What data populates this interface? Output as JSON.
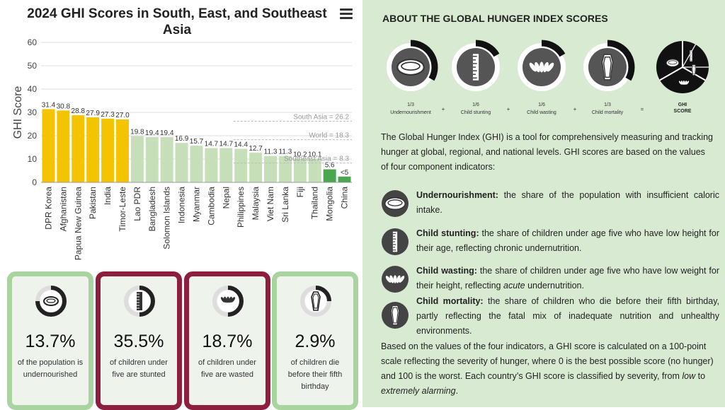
{
  "chart_panel": {
    "title": "2024 GHI Scores in South, East, and Southeast Asia"
  },
  "chart_data": {
    "type": "bar",
    "title": "2024 GHI Scores in South, East, and Southeast Asia",
    "ylabel": "GHI Score",
    "ylim": [
      0,
      60
    ],
    "yticks": [
      0,
      10,
      20,
      30,
      40,
      50,
      60
    ],
    "categories": [
      "DPR Korea",
      "Afghanistan",
      "Papua New Guinea",
      "Pakistan",
      "India",
      "Timor-Leste",
      "Lao PDR",
      "Bangladesh",
      "Solomon Islands",
      "Indonesia",
      "Myanmar",
      "Cambodia",
      "Nepal",
      "Philippines",
      "Malaysia",
      "Viet Nam",
      "Sri Lanka",
      "Fiji",
      "Thailand",
      "Mongolia",
      "China"
    ],
    "values": [
      31.4,
      30.8,
      28.8,
      27.9,
      27.3,
      27.0,
      19.8,
      19.4,
      19.4,
      16.9,
      15.7,
      14.7,
      14.7,
      14.4,
      12.7,
      11.3,
      11.3,
      10.2,
      10.1,
      5.6,
      2.5
    ],
    "labels": [
      "31.4",
      "30.8",
      "28.8",
      "27.9",
      "27.3",
      "27.0",
      "19.8",
      "19.4",
      "19.4",
      "16.9",
      "15.7",
      "14.7",
      "14.7",
      "14.4",
      "12.7",
      "11.3",
      "11.3",
      "10.2",
      "10.1",
      "5.6",
      "<5"
    ],
    "severity": [
      "serious",
      "serious",
      "serious",
      "serious",
      "serious",
      "serious",
      "moderate",
      "moderate",
      "moderate",
      "moderate",
      "moderate",
      "moderate",
      "moderate",
      "moderate",
      "moderate",
      "moderate",
      "moderate",
      "moderate",
      "moderate",
      "low",
      "low"
    ],
    "colors": {
      "serious": "#f5c400",
      "moderate": "#c6dfb9",
      "low": "#4aa64f"
    },
    "reference_lines": [
      {
        "label": "South Asia = 26.2",
        "value": 26.2
      },
      {
        "label": "World = 18.3",
        "value": 18.3
      },
      {
        "label": "Southeast Asia = 8.3",
        "value": 8.3
      }
    ],
    "grid": true
  },
  "cards": [
    {
      "value": "13.7%",
      "text": "of the population is undernourished",
      "icon": "plate-icon",
      "fill": 0.75,
      "color": "#a9d4a0"
    },
    {
      "value": "35.5%",
      "text": "of children under five are stunted",
      "icon": "ruler-icon",
      "fill": 0.5,
      "color": "#8e1e3d"
    },
    {
      "value": "18.7%",
      "text": "of children under five are wasted",
      "icon": "scale-icon",
      "fill": 0.5,
      "color": "#8e1e3d"
    },
    {
      "value": "2.9%",
      "text": "of children die before their fifth birthday",
      "icon": "coffin-icon",
      "fill": 0.25,
      "color": "#a9d4a0"
    }
  ],
  "about": {
    "title": "ABOUT THE GLOBAL HUNGER INDEX SCORES",
    "equation": [
      {
        "fraction": "1/3",
        "label": "Undernourishment",
        "icon": "plate-icon"
      },
      {
        "fraction": "1/6",
        "label": "Child stunting",
        "icon": "ruler-icon"
      },
      {
        "fraction": "1/6",
        "label": "Child wasting",
        "icon": "scale-icon"
      },
      {
        "fraction": "1/3",
        "label": "Child mortality",
        "icon": "coffin-icon"
      }
    ],
    "ops": [
      "+",
      "+",
      "+",
      "="
    ],
    "result_label": "GHI SCORE",
    "intro": "The Global Hunger Index (GHI) is a tool for comprehensively measuring and tracking hunger at global, regional, and national levels. GHI scores are based on the values of four component indicators:",
    "indicators": [
      {
        "name": "Undernourishment:",
        "text": " the share of the population with insufficient caloric intake.",
        "icon": "plate-icon"
      },
      {
        "name": "Child stunting:",
        "text": " the share of children under age five who have low height for their age, reflecting chronic undernutrition.",
        "icon": "ruler-icon"
      },
      {
        "name": "Child wasting:",
        "text_before": " the share of children under age five who have low weight for their height, reflecting ",
        "emph": "acute",
        "text_after": " undernutrition.",
        "icon": "scale-icon"
      },
      {
        "name": "Child mortality:",
        "text": " the share of children who die before their fifth birthday, partly reflecting the fatal mix of inadequate nutrition and unhealthy environments.",
        "icon": "coffin-icon"
      }
    ],
    "closing_before": "Based on the values of the four indicators, a GHI score is calculated on a 100-point scale reflecting the severity of hunger, where 0 is the best possible score (no hunger) and 100 is the worst. Each country’s GHI score is classified by severity, from ",
    "closing_low": "low",
    "closing_mid": " to ",
    "closing_high": "extremely alarming",
    "closing_end": "."
  }
}
